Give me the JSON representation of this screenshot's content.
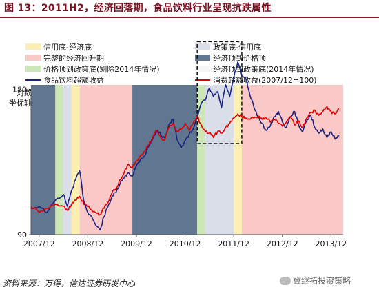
{
  "figure": {
    "title": "图 13：2011H2，经济回落期，食品饮料行业呈现抗跌属性",
    "source": "资料来源：万得，信达证券研发中心",
    "watermark": "冀继拓投资策略"
  },
  "chart_data": {
    "type": "line",
    "ylabel": "对数坐标轴",
    "y_scale": "log",
    "ylim": [
      90,
      230
    ],
    "y_ticks": [
      90,
      180
    ],
    "x_range": [
      "2007-10",
      "2014-03"
    ],
    "x_ticks": [
      "2007/12",
      "2008/12",
      "2009/12",
      "2010/12",
      "2011/12",
      "2012/12",
      "2013/12"
    ],
    "regimes": [
      {
        "name": "信用底-经济底",
        "color": "#fdeeb4"
      },
      {
        "name": "政策底-信用底",
        "color": "#d9dee8"
      },
      {
        "name": "完整的经济回升期",
        "color": "#fbc8c8"
      },
      {
        "name": "经济顶到价格顶",
        "color": "#617691"
      },
      {
        "name": "价格顶到政策底(剔除2014年情况)",
        "color": "#cde7b7"
      },
      {
        "name": "经济顶到政策底(2014年情况)",
        "color": "#f7f7f7"
      }
    ],
    "bands": [
      {
        "start": "2007-10",
        "end": "2008-04",
        "regime": 3
      },
      {
        "start": "2008-04",
        "end": "2008-06",
        "regime": 4
      },
      {
        "start": "2008-06",
        "end": "2008-08",
        "regime": 1
      },
      {
        "start": "2008-08",
        "end": "2008-10",
        "regime": 0
      },
      {
        "start": "2008-10",
        "end": "2009-11",
        "regime": 2
      },
      {
        "start": "2009-11",
        "end": "2011-03",
        "regime": 3
      },
      {
        "start": "2011-03",
        "end": "2011-05",
        "regime": 4
      },
      {
        "start": "2011-05",
        "end": "2011-12",
        "regime": 1
      },
      {
        "start": "2011-12",
        "end": "2012-02",
        "regime": 0
      },
      {
        "start": "2012-02",
        "end": "2014-03",
        "regime": 2
      }
    ],
    "highlight_box": {
      "x": [
        "2011-03",
        "2012-02"
      ],
      "y": [
        139,
        226
      ]
    },
    "series": [
      {
        "name": "食品饮料超额收益",
        "color": "#1a237e",
        "points": [
          [
            "2007-10",
            102
          ],
          [
            "2007-12",
            103
          ],
          [
            "2008-02",
            100
          ],
          [
            "2008-04",
            106
          ],
          [
            "2008-06",
            109
          ],
          [
            "2008-07",
            103
          ],
          [
            "2008-08",
            111
          ],
          [
            "2008-09",
            117
          ],
          [
            "2008-10",
            122
          ],
          [
            "2008-11",
            106
          ],
          [
            "2008-12",
            100
          ],
          [
            "2009-01",
            98
          ],
          [
            "2009-02",
            94
          ],
          [
            "2009-03",
            92
          ],
          [
            "2009-04",
            98
          ],
          [
            "2009-05",
            103
          ],
          [
            "2009-06",
            108
          ],
          [
            "2009-07",
            110
          ],
          [
            "2009-08",
            115
          ],
          [
            "2009-09",
            118
          ],
          [
            "2009-10",
            121
          ],
          [
            "2009-11",
            119
          ],
          [
            "2009-12",
            125
          ],
          [
            "2010-01",
            129
          ],
          [
            "2010-02",
            131
          ],
          [
            "2010-03",
            137
          ],
          [
            "2010-04",
            142
          ],
          [
            "2010-05",
            148
          ],
          [
            "2010-06",
            145
          ],
          [
            "2010-07",
            143
          ],
          [
            "2010-08",
            152
          ],
          [
            "2010-09",
            156
          ],
          [
            "2010-10",
            142
          ],
          [
            "2010-11",
            136
          ],
          [
            "2010-12",
            141
          ],
          [
            "2011-01",
            145
          ],
          [
            "2011-02",
            149
          ],
          [
            "2011-03",
            159
          ],
          [
            "2011-04",
            168
          ],
          [
            "2011-05",
            171
          ],
          [
            "2011-06",
            181
          ],
          [
            "2011-07",
            174
          ],
          [
            "2011-08",
            178
          ],
          [
            "2011-09",
            165
          ],
          [
            "2011-10",
            184
          ],
          [
            "2011-11",
            174
          ],
          [
            "2011-12",
            190
          ],
          [
            "2012-01",
            205
          ],
          [
            "2012-02",
            192
          ],
          [
            "2012-03",
            189
          ],
          [
            "2012-04",
            175
          ],
          [
            "2012-05",
            165
          ],
          [
            "2012-06",
            158
          ],
          [
            "2012-07",
            153
          ],
          [
            "2012-08",
            148
          ],
          [
            "2012-09",
            151
          ],
          [
            "2012-10",
            158
          ],
          [
            "2012-11",
            162
          ],
          [
            "2012-12",
            154
          ],
          [
            "2013-01",
            150
          ],
          [
            "2013-02",
            158
          ],
          [
            "2013-03",
            162
          ],
          [
            "2013-04",
            152
          ],
          [
            "2013-05",
            147
          ],
          [
            "2013-06",
            155
          ],
          [
            "2013-07",
            159
          ],
          [
            "2013-08",
            150
          ],
          [
            "2013-09",
            146
          ],
          [
            "2013-10",
            149
          ],
          [
            "2013-11",
            143
          ],
          [
            "2013-12",
            147
          ],
          [
            "2014-01",
            142
          ],
          [
            "2014-02",
            144
          ]
        ]
      },
      {
        "name": "消费超额收益(2007/12=100)",
        "color": "#e00000",
        "points": [
          [
            "2007-10",
            103
          ],
          [
            "2007-12",
            100
          ],
          [
            "2008-02",
            102
          ],
          [
            "2008-04",
            104
          ],
          [
            "2008-06",
            103
          ],
          [
            "2008-07",
            101
          ],
          [
            "2008-08",
            104
          ],
          [
            "2008-09",
            106
          ],
          [
            "2008-10",
            108
          ],
          [
            "2008-11",
            104
          ],
          [
            "2008-12",
            103
          ],
          [
            "2009-01",
            101
          ],
          [
            "2009-02",
            100
          ],
          [
            "2009-03",
            99
          ],
          [
            "2009-04",
            102
          ],
          [
            "2009-05",
            105
          ],
          [
            "2009-06",
            110
          ],
          [
            "2009-07",
            112
          ],
          [
            "2009-08",
            117
          ],
          [
            "2009-09",
            121
          ],
          [
            "2009-10",
            126
          ],
          [
            "2009-11",
            124
          ],
          [
            "2009-12",
            128
          ],
          [
            "2010-01",
            131
          ],
          [
            "2010-02",
            134
          ],
          [
            "2010-03",
            138
          ],
          [
            "2010-04",
            143
          ],
          [
            "2010-05",
            148
          ],
          [
            "2010-06",
            143
          ],
          [
            "2010-07",
            141
          ],
          [
            "2010-08",
            150
          ],
          [
            "2010-09",
            153
          ],
          [
            "2010-10",
            147
          ],
          [
            "2010-11",
            149
          ],
          [
            "2010-12",
            153
          ],
          [
            "2011-01",
            148
          ],
          [
            "2011-02",
            153
          ],
          [
            "2011-03",
            158
          ],
          [
            "2011-04",
            152
          ],
          [
            "2011-05",
            147
          ],
          [
            "2011-06",
            146
          ],
          [
            "2011-07",
            143
          ],
          [
            "2011-08",
            147
          ],
          [
            "2011-09",
            146
          ],
          [
            "2011-10",
            150
          ],
          [
            "2011-11",
            153
          ],
          [
            "2011-12",
            157
          ],
          [
            "2012-01",
            160
          ],
          [
            "2012-02",
            158
          ],
          [
            "2012-03",
            157
          ],
          [
            "2012-04",
            156
          ],
          [
            "2012-05",
            157
          ],
          [
            "2012-06",
            158
          ],
          [
            "2012-07",
            156
          ],
          [
            "2012-08",
            157
          ],
          [
            "2012-09",
            154
          ],
          [
            "2012-10",
            156
          ],
          [
            "2012-11",
            153
          ],
          [
            "2012-12",
            151
          ],
          [
            "2013-01",
            154
          ],
          [
            "2013-02",
            158
          ],
          [
            "2013-03",
            152
          ],
          [
            "2013-04",
            155
          ],
          [
            "2013-05",
            150
          ],
          [
            "2013-06",
            157
          ],
          [
            "2013-07",
            161
          ],
          [
            "2013-08",
            163
          ],
          [
            "2013-09",
            159
          ],
          [
            "2013-10",
            162
          ],
          [
            "2013-11",
            166
          ],
          [
            "2013-12",
            162
          ],
          [
            "2014-01",
            160
          ],
          [
            "2014-02",
            164
          ]
        ]
      }
    ],
    "legend": {
      "placement": "top",
      "items": [
        {
          "label": "信用底-经济底",
          "kind": "band",
          "regime": 0
        },
        {
          "label": "政策底-信用底",
          "kind": "band",
          "regime": 1
        },
        {
          "label": "完整的经济回升期",
          "kind": "band",
          "regime": 2
        },
        {
          "label": "经济顶到价格顶",
          "kind": "band",
          "regime": 3
        },
        {
          "label": "价格顶到政策底(剔除2014年情况)",
          "kind": "band",
          "regime": 4
        },
        {
          "label": "经济顶到政策底(2014年情况)",
          "kind": "band",
          "regime": 5
        },
        {
          "label": "食品饮料超额收益",
          "kind": "line",
          "series": 0
        },
        {
          "label": "消费超额收益(2007/12=100)",
          "kind": "line",
          "series": 1
        }
      ]
    }
  }
}
